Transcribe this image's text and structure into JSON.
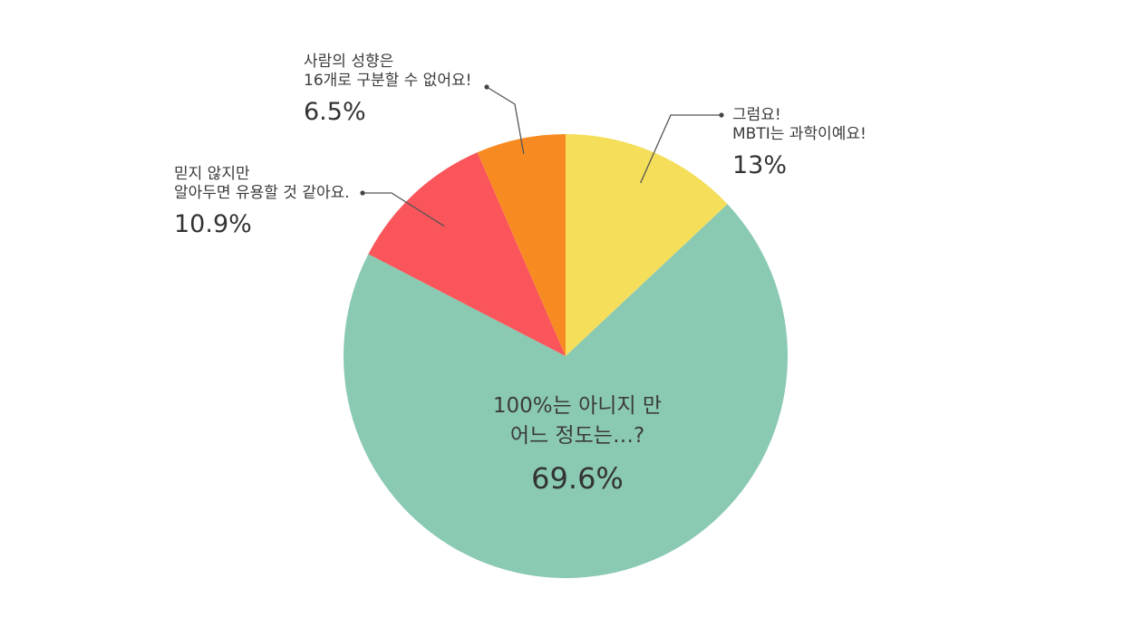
{
  "chart_data": {
    "type": "pie",
    "slices": [
      {
        "lines": [
          "그럼요!",
          "MBTI는 과학이예요!"
        ],
        "value": 13,
        "value_label": "13%",
        "color": "#f5de5a"
      },
      {
        "lines": [
          "100%는 아니지 만",
          "어느 정도는…?"
        ],
        "value": 69.6,
        "value_label": "69.6%",
        "color": "#8acab2"
      },
      {
        "lines": [
          "믿지 않지만",
          "알아두면 유용할 것 같아요."
        ],
        "value": 10.9,
        "value_label": "10.9%",
        "color": "#fa555a"
      },
      {
        "lines": [
          "사람의 성향은",
          "16개로 구분할 수 없어요!"
        ],
        "value": 6.5,
        "value_label": "6.5%",
        "color": "#f78b22"
      }
    ]
  }
}
